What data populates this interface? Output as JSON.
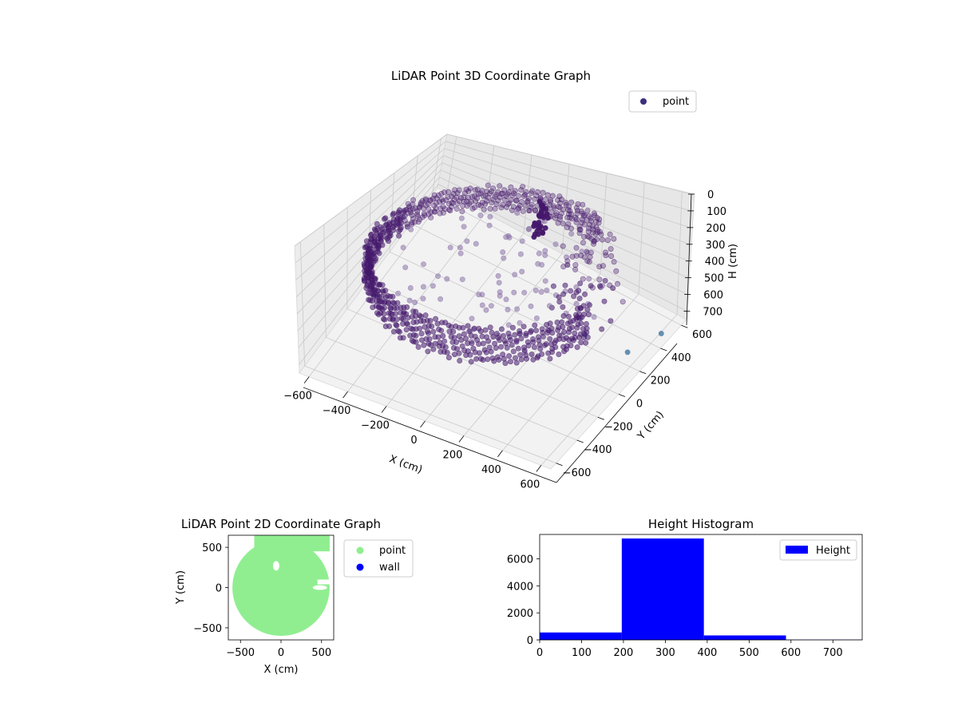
{
  "chart_data": [
    {
      "type": "scatter3d",
      "title": "LiDAR Point 3D Coordinate Graph",
      "xlabel": "X (cm)",
      "ylabel": "Y (cm)",
      "zlabel": "H (cm)",
      "xticks": [
        -600,
        -400,
        -200,
        0,
        200,
        400,
        600
      ],
      "yticks": [
        -600,
        -400,
        -200,
        0,
        200,
        400,
        600
      ],
      "zticks": [
        0,
        100,
        200,
        300,
        400,
        500,
        600,
        700
      ],
      "xlim": [
        -650,
        650
      ],
      "ylim": [
        -650,
        650
      ],
      "zlim": [
        0,
        750
      ],
      "zinverted": true,
      "grid": true,
      "legend": {
        "position": "top-right",
        "entries": [
          {
            "name": "point",
            "color": "#3b2f7f"
          }
        ]
      },
      "colors": {
        "main": "#44176b",
        "pale": "#8a73a8",
        "far": "#4e7fa6"
      },
      "series": [
        {
          "name": "point",
          "shape": "cylindrical scan",
          "radius": 600,
          "h_range": [
            200,
            400
          ]
        }
      ]
    },
    {
      "type": "scatter",
      "title": "LiDAR Point 2D Coordinate Graph",
      "xlabel": "X (cm)",
      "ylabel": "Y (cm)",
      "xticks": [
        -500,
        0,
        500
      ],
      "yticks": [
        -500,
        0,
        500
      ],
      "xlim": [
        -650,
        650
      ],
      "ylim": [
        -650,
        650
      ],
      "legend": {
        "position": "right",
        "entries": [
          {
            "name": "point",
            "color": "#90ee90"
          },
          {
            "name": "wall",
            "color": "#0000ff"
          }
        ]
      },
      "series": [
        {
          "name": "point",
          "color": "#90ee90",
          "shape": "filled disk",
          "radius": 600
        },
        {
          "name": "wall",
          "color": "#0000ff",
          "count": 0
        }
      ]
    },
    {
      "type": "bar",
      "title": "Height Histogram",
      "xticks": [
        0,
        100,
        200,
        300,
        400,
        500,
        600,
        700
      ],
      "yticks": [
        0,
        2000,
        4000,
        6000
      ],
      "xlim": [
        0,
        770
      ],
      "ylim": [
        0,
        7800
      ],
      "legend": {
        "position": "top-right",
        "entries": [
          {
            "name": "Height",
            "color": "#0000ff"
          }
        ]
      },
      "series": [
        {
          "name": "Height",
          "color": "#0000ff",
          "bins": [
            [
              0,
              196
            ],
            [
              196,
              392
            ],
            [
              392,
              588
            ],
            [
              588,
              784
            ]
          ],
          "values": [
            550,
            7500,
            330,
            20
          ]
        }
      ]
    }
  ]
}
